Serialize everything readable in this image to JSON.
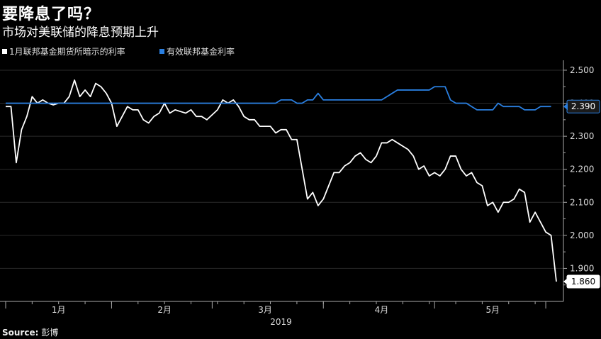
{
  "title": "要降息了吗？",
  "subtitle": "市场对美联储的降息预期上升",
  "source_label": "Source:",
  "source_value": "彭博",
  "colors": {
    "implied": "#ffffff",
    "effective": "#2a7fe0",
    "background": "#000000",
    "axis": "#aaaaaa"
  },
  "chart_data": {
    "type": "line",
    "title": "要降息了吗？",
    "subtitle": "市场对美联储的降息预期上升",
    "xlabel": "2019",
    "ylabel": "",
    "ylim": [
      1.8,
      2.53
    ],
    "xlim": [
      0,
      104
    ],
    "y_ticks": [
      "2.500",
      "2.400",
      "2.300",
      "2.200",
      "2.100",
      "2.000",
      "1.900"
    ],
    "y_tick_values": [
      2.5,
      2.4,
      2.3,
      2.2,
      2.1,
      2.0,
      1.9
    ],
    "x_ticks": [
      {
        "label": "1月",
        "x": 10
      },
      {
        "label": "2月",
        "x": 30
      },
      {
        "label": "3月",
        "x": 49
      },
      {
        "label": "4月",
        "x": 71
      },
      {
        "label": "5月",
        "x": 92
      }
    ],
    "year_label": "2019",
    "legend_position": "top-left",
    "series": [
      {
        "name": "1月联邦基金期货所暗示的利率",
        "color": "#ffffff",
        "last_label": "1.860",
        "values": [
          2.39,
          2.39,
          2.22,
          2.32,
          2.36,
          2.42,
          2.4,
          2.41,
          2.4,
          2.395,
          2.4,
          2.4,
          2.42,
          2.47,
          2.42,
          2.44,
          2.42,
          2.46,
          2.45,
          2.43,
          2.4,
          2.33,
          2.36,
          2.39,
          2.38,
          2.38,
          2.35,
          2.34,
          2.36,
          2.37,
          2.4,
          2.37,
          2.38,
          2.375,
          2.37,
          2.38,
          2.36,
          2.36,
          2.35,
          2.365,
          2.38,
          2.41,
          2.4,
          2.41,
          2.39,
          2.36,
          2.35,
          2.35,
          2.33,
          2.33,
          2.33,
          2.31,
          2.32,
          2.32,
          2.29,
          2.29,
          2.2,
          2.11,
          2.13,
          2.09,
          2.11,
          2.15,
          2.19,
          2.19,
          2.21,
          2.22,
          2.24,
          2.25,
          2.23,
          2.22,
          2.24,
          2.28,
          2.28,
          2.29,
          2.28,
          2.27,
          2.26,
          2.24,
          2.2,
          2.21,
          2.18,
          2.19,
          2.18,
          2.2,
          2.24,
          2.24,
          2.2,
          2.18,
          2.19,
          2.16,
          2.15,
          2.09,
          2.1,
          2.07,
          2.1,
          2.1,
          2.11,
          2.14,
          2.13,
          2.04,
          2.07,
          2.04,
          2.01,
          2.0,
          1.86
        ]
      },
      {
        "name": "有效联邦基金利率",
        "color": "#2a7fe0",
        "last_label": "2.390",
        "values": [
          2.4,
          2.4,
          2.4,
          2.4,
          2.4,
          2.4,
          2.4,
          2.4,
          2.4,
          2.4,
          2.4,
          2.4,
          2.4,
          2.4,
          2.4,
          2.4,
          2.4,
          2.4,
          2.4,
          2.4,
          2.4,
          2.4,
          2.4,
          2.4,
          2.4,
          2.4,
          2.4,
          2.4,
          2.4,
          2.4,
          2.4,
          2.4,
          2.4,
          2.4,
          2.4,
          2.4,
          2.4,
          2.4,
          2.4,
          2.4,
          2.4,
          2.4,
          2.4,
          2.4,
          2.4,
          2.4,
          2.4,
          2.4,
          2.4,
          2.4,
          2.4,
          2.4,
          2.41,
          2.41,
          2.41,
          2.4,
          2.4,
          2.41,
          2.41,
          2.43,
          2.41,
          2.41,
          2.41,
          2.41,
          2.41,
          2.41,
          2.41,
          2.41,
          2.41,
          2.41,
          2.41,
          2.41,
          2.42,
          2.43,
          2.44,
          2.44,
          2.44,
          2.44,
          2.44,
          2.44,
          2.44,
          2.45,
          2.45,
          2.45,
          2.41,
          2.4,
          2.4,
          2.4,
          2.39,
          2.38,
          2.38,
          2.38,
          2.38,
          2.4,
          2.39,
          2.39,
          2.39,
          2.39,
          2.38,
          2.38,
          2.38,
          2.39,
          2.39,
          2.39
        ]
      }
    ]
  }
}
